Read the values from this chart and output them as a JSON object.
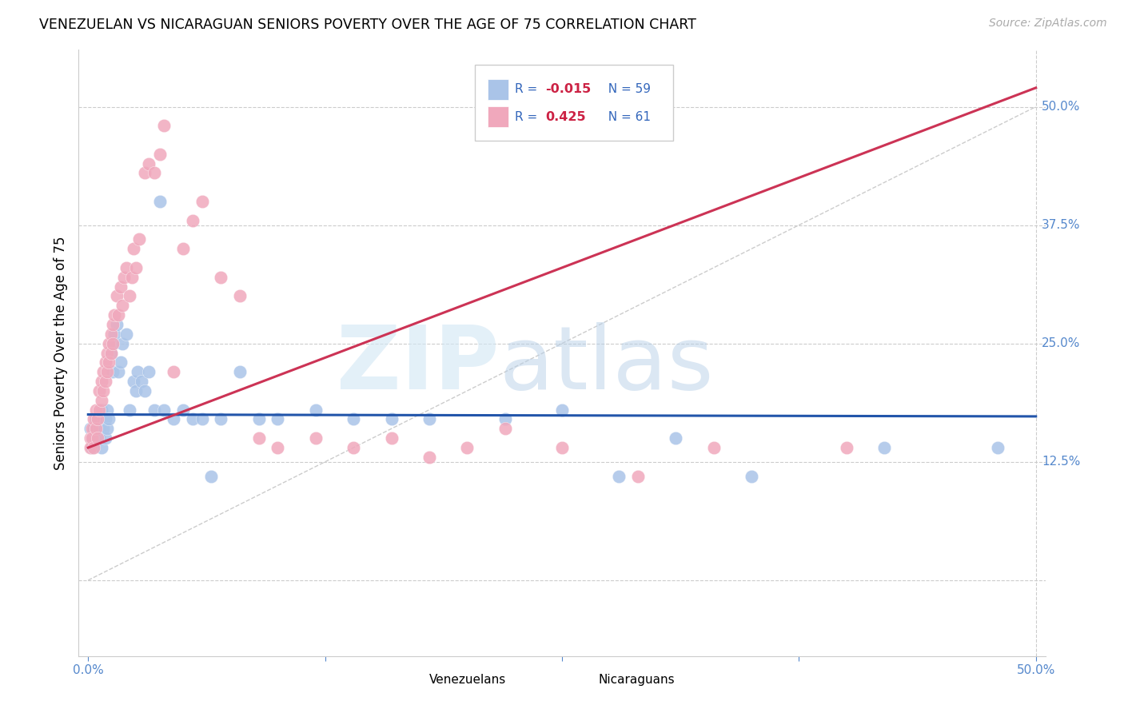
{
  "title": "VENEZUELAN VS NICARAGUAN SENIORS POVERTY OVER THE AGE OF 75 CORRELATION CHART",
  "source": "Source: ZipAtlas.com",
  "ylabel": "Seniors Poverty Over the Age of 75",
  "xlim": [
    -0.005,
    0.505
  ],
  "ylim": [
    -0.08,
    0.56
  ],
  "yticks_right": [
    0.5,
    0.375,
    0.25,
    0.125
  ],
  "ytick_labels_right": [
    "50.0%",
    "37.5%",
    "25.0%",
    "12.5%"
  ],
  "xticks": [
    0.0,
    0.125,
    0.25,
    0.375,
    0.5
  ],
  "xtick_labels": [
    "0.0%",
    "",
    "",
    "",
    "50.0%"
  ],
  "venezuelan_R": "-0.015",
  "venezuelan_N": "59",
  "nicaraguan_R": "0.425",
  "nicaraguan_N": "61",
  "venezuelan_color": "#aac4e8",
  "nicaraguan_color": "#f0a8bc",
  "venezuelan_line_color": "#2255aa",
  "nicaraguan_line_color": "#cc3355",
  "grid_color": "#cccccc",
  "tick_color": "#5588cc",
  "ven_x": [
    0.001,
    0.002,
    0.002,
    0.003,
    0.003,
    0.004,
    0.004,
    0.005,
    0.005,
    0.006,
    0.006,
    0.007,
    0.007,
    0.008,
    0.008,
    0.009,
    0.009,
    0.01,
    0.01,
    0.011,
    0.012,
    0.013,
    0.013,
    0.014,
    0.015,
    0.016,
    0.017,
    0.018,
    0.02,
    0.022,
    0.024,
    0.025,
    0.026,
    0.028,
    0.03,
    0.032,
    0.035,
    0.038,
    0.04,
    0.045,
    0.05,
    0.055,
    0.06,
    0.065,
    0.07,
    0.08,
    0.09,
    0.1,
    0.12,
    0.14,
    0.16,
    0.18,
    0.22,
    0.25,
    0.28,
    0.31,
    0.35,
    0.42,
    0.48
  ],
  "ven_y": [
    0.16,
    0.15,
    0.14,
    0.16,
    0.15,
    0.17,
    0.16,
    0.15,
    0.17,
    0.16,
    0.15,
    0.18,
    0.14,
    0.17,
    0.16,
    0.15,
    0.17,
    0.18,
    0.16,
    0.17,
    0.24,
    0.25,
    0.22,
    0.26,
    0.27,
    0.22,
    0.23,
    0.25,
    0.26,
    0.18,
    0.21,
    0.2,
    0.22,
    0.21,
    0.2,
    0.22,
    0.18,
    0.4,
    0.18,
    0.17,
    0.18,
    0.17,
    0.17,
    0.11,
    0.17,
    0.22,
    0.17,
    0.17,
    0.18,
    0.17,
    0.17,
    0.17,
    0.17,
    0.18,
    0.11,
    0.15,
    0.11,
    0.14,
    0.14
  ],
  "nic_x": [
    0.001,
    0.001,
    0.002,
    0.002,
    0.003,
    0.003,
    0.004,
    0.004,
    0.005,
    0.005,
    0.006,
    0.006,
    0.007,
    0.007,
    0.008,
    0.008,
    0.009,
    0.009,
    0.01,
    0.01,
    0.011,
    0.011,
    0.012,
    0.012,
    0.013,
    0.013,
    0.014,
    0.015,
    0.016,
    0.017,
    0.018,
    0.019,
    0.02,
    0.022,
    0.023,
    0.024,
    0.025,
    0.027,
    0.03,
    0.032,
    0.035,
    0.038,
    0.04,
    0.045,
    0.05,
    0.055,
    0.06,
    0.07,
    0.08,
    0.09,
    0.1,
    0.12,
    0.14,
    0.16,
    0.18,
    0.2,
    0.22,
    0.25,
    0.29,
    0.33,
    0.4
  ],
  "nic_y": [
    0.15,
    0.14,
    0.16,
    0.15,
    0.17,
    0.14,
    0.18,
    0.16,
    0.17,
    0.15,
    0.18,
    0.2,
    0.21,
    0.19,
    0.22,
    0.2,
    0.23,
    0.21,
    0.24,
    0.22,
    0.25,
    0.23,
    0.26,
    0.24,
    0.27,
    0.25,
    0.28,
    0.3,
    0.28,
    0.31,
    0.29,
    0.32,
    0.33,
    0.3,
    0.32,
    0.35,
    0.33,
    0.36,
    0.43,
    0.44,
    0.43,
    0.45,
    0.48,
    0.22,
    0.35,
    0.38,
    0.4,
    0.32,
    0.3,
    0.15,
    0.14,
    0.15,
    0.14,
    0.15,
    0.13,
    0.14,
    0.16,
    0.14,
    0.11,
    0.14,
    0.14
  ]
}
